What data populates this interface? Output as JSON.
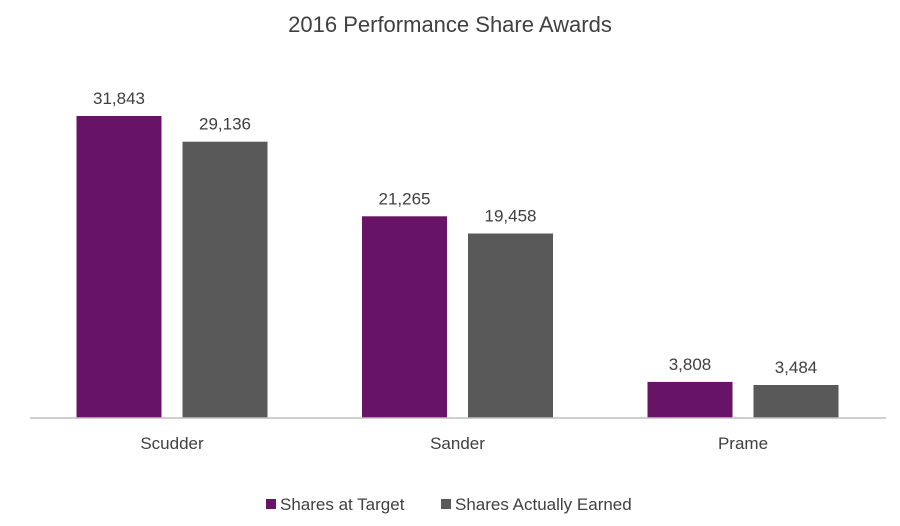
{
  "chart_data": {
    "type": "bar",
    "title": "2016 Performance Share Awards",
    "categories": [
      "Scudder",
      "Sander",
      "Prame"
    ],
    "series": [
      {
        "name": "Shares at Target",
        "values": [
          31843,
          21265,
          3808
        ],
        "labels": [
          "31,843",
          "21,265",
          "3,808"
        ],
        "color": "#681466"
      },
      {
        "name": "Shares Actually Earned",
        "values": [
          29136,
          19458,
          3484
        ],
        "labels": [
          "29,136",
          "19,458",
          "3,484"
        ],
        "color": "#595959"
      }
    ],
    "ylim": [
      0,
      31843
    ],
    "grid": false,
    "legend_position": "bottom",
    "axis_color": "#bfbfbf",
    "text_color": "#404040"
  }
}
